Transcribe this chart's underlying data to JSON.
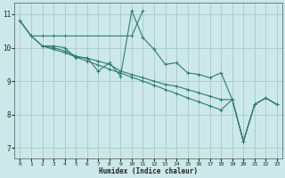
{
  "title": "",
  "xlabel": "Humidex (Indice chaleur)",
  "xlim": [
    -0.5,
    23.5
  ],
  "ylim": [
    6.7,
    11.35
  ],
  "yticks": [
    7,
    8,
    9,
    10,
    11
  ],
  "xticks": [
    0,
    1,
    2,
    3,
    4,
    5,
    6,
    7,
    8,
    9,
    10,
    11,
    12,
    13,
    14,
    15,
    16,
    17,
    18,
    19,
    20,
    21,
    22,
    23
  ],
  "bg_color": "#cce8e8",
  "grid_color": "#aacece",
  "line_color": "#2e7d6e",
  "series": [
    {
      "x": [
        0,
        1,
        2,
        3,
        4,
        5,
        6,
        7,
        8,
        9,
        10,
        11,
        12,
        13,
        14,
        15,
        16,
        17,
        18,
        19,
        20,
        21,
        22,
        23
      ],
      "y": [
        10.8,
        10.35,
        10.05,
        10.05,
        10.0,
        9.7,
        9.7,
        9.3,
        9.55,
        9.15,
        11.1,
        10.3,
        9.95,
        9.5,
        9.55,
        9.25,
        9.2,
        9.1,
        9.25,
        8.45,
        7.2,
        8.3,
        8.5,
        8.3
      ]
    },
    {
      "x": [
        0,
        1,
        2,
        3,
        4,
        10,
        11
      ],
      "y": [
        10.8,
        10.35,
        10.35,
        10.35,
        10.35,
        10.35,
        11.1
      ]
    },
    {
      "x": [
        0,
        1,
        2,
        3,
        4,
        5,
        6,
        7,
        8,
        9,
        10,
        11,
        12,
        13,
        14,
        15,
        16,
        17,
        18,
        19,
        20,
        21,
        22,
        23
      ],
      "y": [
        10.8,
        10.35,
        10.05,
        10.0,
        9.9,
        9.75,
        9.68,
        9.6,
        9.5,
        9.3,
        9.2,
        9.1,
        9.0,
        8.9,
        8.85,
        8.75,
        8.65,
        8.55,
        8.45,
        8.45,
        7.2,
        8.3,
        8.5,
        8.3
      ]
    },
    {
      "x": [
        2,
        3,
        4,
        5,
        6,
        7,
        8,
        9,
        10,
        11,
        12,
        13,
        14,
        15,
        16,
        17,
        18,
        19,
        20,
        21,
        22,
        23
      ],
      "y": [
        10.05,
        9.95,
        9.85,
        9.72,
        9.6,
        9.48,
        9.36,
        9.24,
        9.12,
        9.0,
        8.88,
        8.75,
        8.63,
        8.5,
        8.38,
        8.26,
        8.14,
        8.45,
        7.2,
        8.3,
        8.5,
        8.3
      ]
    }
  ]
}
